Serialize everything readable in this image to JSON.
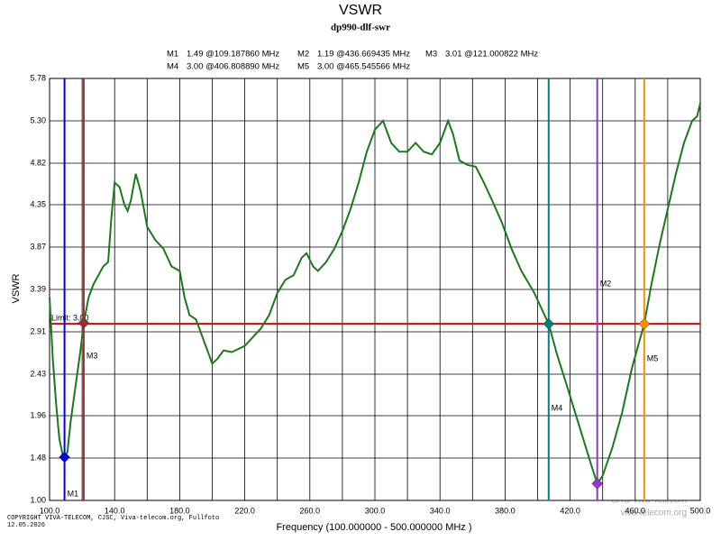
{
  "chart_data": {
    "type": "line",
    "title": "VSWR",
    "subtitle": "dp990-dlf-swr",
    "xlabel": "Frequency (100.000000 - 500.000000 MHz )",
    "ylabel": "VSWR",
    "color": "#1a7a1a",
    "grid": true,
    "xlim": [
      100,
      500
    ],
    "ylim": [
      1,
      5.78
    ],
    "xticks": [
      {
        "value": 100,
        "label": "100.0"
      },
      {
        "value": 140,
        "label": "140.0"
      },
      {
        "value": 180,
        "label": "180.0"
      },
      {
        "value": 220,
        "label": "220.0"
      },
      {
        "value": 260,
        "label": "260.0"
      },
      {
        "value": 300,
        "label": "300.0"
      },
      {
        "value": 340,
        "label": "340.0"
      },
      {
        "value": 380,
        "label": "380.0"
      },
      {
        "value": 420,
        "label": "420.0"
      },
      {
        "value": 460,
        "label": "460.0"
      },
      {
        "value": 500,
        "label": "500.0"
      }
    ],
    "yticks": [
      {
        "value": 1,
        "label": "1.00"
      },
      1.48,
      1.96,
      2.43,
      2.91,
      3.39,
      3.87,
      4.35,
      4.82,
      {
        "value": 5.3,
        "label": "5.30"
      },
      5.78
    ],
    "x": [
      100,
      102,
      104,
      106,
      108,
      109.18786,
      111,
      113,
      116,
      119,
      121.000822,
      124,
      127,
      130,
      133,
      136,
      138,
      140,
      143,
      146,
      148,
      150,
      153,
      156,
      160,
      165,
      170,
      175,
      180,
      183,
      186,
      190,
      195,
      200,
      203,
      207,
      212,
      220,
      230,
      235,
      240,
      245,
      250,
      255,
      258,
      262,
      265,
      270,
      275,
      280,
      285,
      290,
      295,
      300,
      305,
      310,
      315,
      320,
      325,
      330,
      335,
      340,
      345,
      348,
      352,
      357,
      362,
      367,
      372,
      378,
      384,
      390,
      398,
      403,
      406.80889,
      412,
      418,
      423,
      428,
      433,
      436.669435,
      440,
      446,
      452,
      458,
      465.545566,
      470,
      475,
      480,
      485,
      490,
      495,
      498,
      500
    ],
    "values": [
      3.3,
      2.6,
      2.1,
      1.7,
      1.52,
      1.49,
      1.55,
      1.9,
      2.3,
      2.7,
      3.01,
      3.3,
      3.45,
      3.55,
      3.65,
      3.7,
      4.2,
      4.6,
      4.55,
      4.35,
      4.28,
      4.4,
      4.7,
      4.5,
      4.1,
      3.95,
      3.85,
      3.65,
      3.6,
      3.3,
      3.1,
      3.05,
      2.8,
      2.55,
      2.6,
      2.7,
      2.68,
      2.75,
      2.95,
      3.1,
      3.35,
      3.5,
      3.55,
      3.75,
      3.8,
      3.65,
      3.6,
      3.7,
      3.85,
      4.05,
      4.3,
      4.6,
      4.95,
      5.2,
      5.3,
      5.05,
      4.95,
      4.95,
      5.05,
      4.95,
      4.92,
      5.05,
      5.3,
      5.15,
      4.85,
      4.8,
      4.78,
      4.6,
      4.4,
      4.15,
      3.85,
      3.6,
      3.35,
      3.15,
      3.0,
      2.65,
      2.3,
      2.0,
      1.7,
      1.4,
      1.19,
      1.28,
      1.6,
      2.0,
      2.5,
      3.0,
      3.45,
      3.9,
      4.3,
      4.7,
      5.05,
      5.3,
      5.35,
      5.5
    ],
    "limit": {
      "value": 3,
      "label": "Limit: 3.00",
      "color": "#e00000"
    },
    "markers": [
      {
        "name": "M1",
        "x": 109.18786,
        "value": 1.49,
        "label": "1.49 @109.187860 MHz",
        "color": "#0000ee",
        "text_color": "#000080"
      },
      {
        "name": "M2",
        "x": 436.669435,
        "value": 1.19,
        "label": "1.19 @436.669435 MHz",
        "color": "#9933cc",
        "text_color": "#9933cc"
      },
      {
        "name": "M3",
        "x": 121.000822,
        "value": 3.01,
        "label": "3.01 @121.000822 MHz",
        "color": "#a52a2a",
        "text_color": "#a52a2a"
      },
      {
        "name": "M4",
        "x": 406.80889,
        "value": 3.0,
        "label": "3.00 @406.808890 MHz",
        "color": "#008080",
        "text_color": "#008080"
      },
      {
        "name": "M5",
        "x": 465.545566,
        "value": 3.0,
        "label": "3.00 @465.545566 MHz",
        "color": "#ff8c00",
        "text_color": "#ff8c00"
      }
    ],
    "footer": [
      "COPYRIGHT VIVA-TELECOM, CJSC, Viva-telecom.org, Fullfoto",
      "12.05.2026"
    ],
    "watermark": [
      "SAO Viva-Telecom",
      "viva-telecom.org"
    ]
  }
}
